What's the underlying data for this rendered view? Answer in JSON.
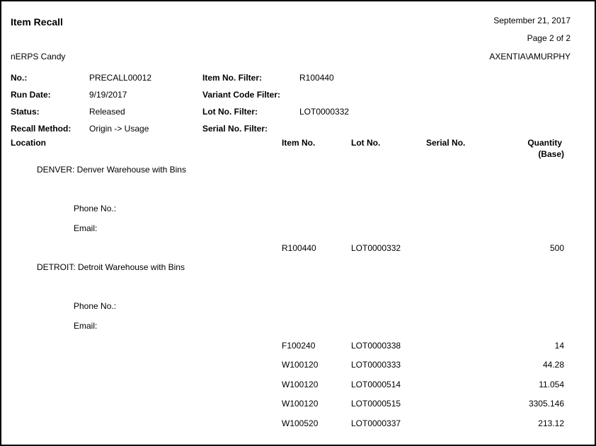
{
  "report": {
    "title": "Item Recall",
    "date": "September 21, 2017",
    "page": "Page 2 of 2",
    "company": "nERPS Candy",
    "user": "AXENTIA\\AMURPHY"
  },
  "header": {
    "no_label": "No.:",
    "no": "PRECALL00012",
    "run_date_label": "Run Date:",
    "run_date": "9/19/2017",
    "status_label": "Status:",
    "status": "Released",
    "method_label": "Recall Method:",
    "method": "Origin -> Usage",
    "item_filter_label": "Item No. Filter:",
    "item_filter": "R100440",
    "variant_filter_label": "Variant Code Filter:",
    "lot_filter_label": "Lot No. Filter:",
    "lot_filter": "LOT0000332",
    "serial_filter_label": "Serial No. Filter:"
  },
  "columns": {
    "location": "Location",
    "item": "Item No.",
    "lot": "Lot No.",
    "serial": "Serial No.",
    "qty1": "Quantity",
    "qty2": "(Base)"
  },
  "locations": [
    {
      "name": "DENVER: Denver Warehouse with Bins",
      "phone": "Phone No.:",
      "email": "Email:",
      "rows": [
        {
          "item": "R100440",
          "lot": "LOT0000332",
          "qty": "500"
        }
      ]
    },
    {
      "name": "DETROIT: Detroit Warehouse with Bins",
      "phone": "Phone No.:",
      "email": "Email:",
      "rows": [
        {
          "item": "F100240",
          "lot": "LOT0000338",
          "qty": "14"
        },
        {
          "item": "W100120",
          "lot": "LOT0000333",
          "qty": "44.28"
        },
        {
          "item": "W100120",
          "lot": "LOT0000514",
          "qty": "11.054"
        },
        {
          "item": "W100120",
          "lot": "LOT0000515",
          "qty": "3305.146"
        },
        {
          "item": "W100520",
          "lot": "LOT0000337",
          "qty": "213.12"
        }
      ]
    }
  ]
}
